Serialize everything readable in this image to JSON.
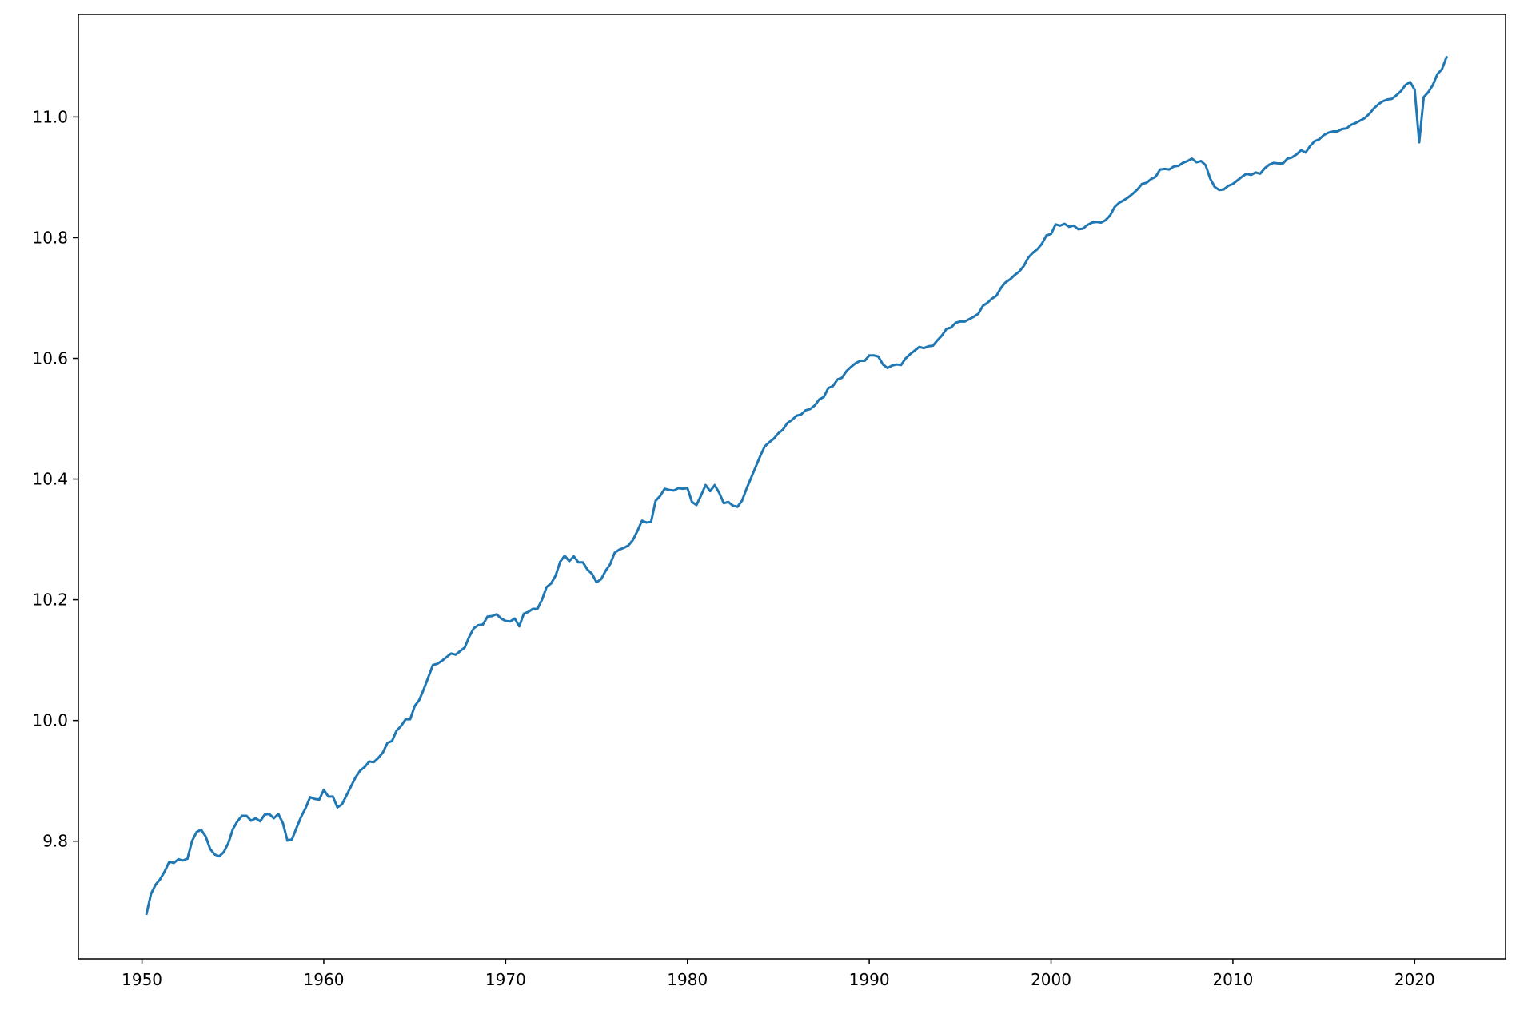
{
  "chart_data": {
    "type": "line",
    "title": "",
    "xlabel": "",
    "ylabel": "",
    "xlim": [
      1946.5,
      2025.0
    ],
    "ylim": [
      9.605,
      11.17
    ],
    "x_ticks": [
      1950,
      1960,
      1970,
      1980,
      1990,
      2000,
      2010,
      2020
    ],
    "x_tick_labels": [
      "1950",
      "1960",
      "1970",
      "1980",
      "1990",
      "2000",
      "2010",
      "2020"
    ],
    "y_ticks": [
      9.8,
      10.0,
      10.2,
      10.4,
      10.6,
      10.8,
      11.0
    ],
    "y_tick_labels": [
      "9.8",
      "10.0",
      "10.2",
      "10.4",
      "10.6",
      "10.8",
      "11.0"
    ],
    "grid": false,
    "legend": "none",
    "series_color": "#1f77b4",
    "series": [
      {
        "x": [
          1950.25,
          1950.5,
          1950.75,
          1951.0,
          1951.25,
          1951.5,
          1951.75,
          1952.0,
          1952.25,
          1952.5,
          1952.75,
          1953.0,
          1953.25,
          1953.5,
          1953.75,
          1954.0,
          1954.25,
          1954.5,
          1954.75,
          1955.0,
          1955.25,
          1955.5,
          1955.75,
          1956.0,
          1956.25,
          1956.5,
          1956.75,
          1957.0,
          1957.25,
          1957.5,
          1957.75,
          1958.0,
          1958.25,
          1958.5,
          1958.75,
          1959.0,
          1959.25,
          1959.5,
          1959.75,
          1960.0,
          1960.25,
          1960.5,
          1960.75,
          1961.0,
          1961.25,
          1961.5,
          1961.75,
          1962.0,
          1962.25,
          1962.5,
          1962.75,
          1963.0,
          1963.25,
          1963.5,
          1963.75,
          1964.0,
          1964.25,
          1964.5,
          1964.75,
          1965.0,
          1965.25,
          1965.5,
          1965.75,
          1966.0,
          1966.25,
          1966.5,
          1966.75,
          1967.0,
          1967.25,
          1967.5,
          1967.75,
          1968.0,
          1968.25,
          1968.5,
          1968.75,
          1969.0,
          1969.25,
          1969.5,
          1969.75,
          1970.0,
          1970.25,
          1970.5,
          1970.75,
          1971.0,
          1971.25,
          1971.5,
          1971.75,
          1972.0,
          1972.25,
          1972.5,
          1972.75,
          1973.0,
          1973.25,
          1973.5,
          1973.75,
          1974.0,
          1974.25,
          1974.5,
          1974.75,
          1975.0,
          1975.25,
          1975.5,
          1975.75,
          1976.0,
          1976.25,
          1976.5,
          1976.75,
          1977.0,
          1977.25,
          1977.5,
          1977.75,
          1978.0,
          1978.25,
          1978.5,
          1978.75,
          1979.0,
          1979.25,
          1979.5,
          1979.75,
          1980.0,
          1980.25,
          1980.5,
          1980.75,
          1981.0,
          1981.25,
          1981.5,
          1981.75,
          1982.0,
          1982.25,
          1982.5,
          1982.75,
          1983.0,
          1983.25,
          1983.5,
          1983.75,
          1984.0,
          1984.25,
          1984.5,
          1984.75,
          1985.0,
          1985.25,
          1985.5,
          1985.75,
          1986.0,
          1986.25,
          1986.5,
          1986.75,
          1987.0,
          1987.25,
          1987.5,
          1987.75,
          1988.0,
          1988.25,
          1988.5,
          1988.75,
          1989.0,
          1989.25,
          1989.5,
          1989.75,
          1990.0,
          1990.25,
          1990.5,
          1990.75,
          1991.0,
          1991.25,
          1991.5,
          1991.75,
          1992.0,
          1992.25,
          1992.5,
          1992.75,
          1993.0,
          1993.25,
          1993.5,
          1993.75,
          1994.0,
          1994.25,
          1994.5,
          1994.75,
          1995.0,
          1995.25,
          1995.5,
          1995.75,
          1996.0,
          1996.25,
          1996.5,
          1996.75,
          1997.0,
          1997.25,
          1997.5,
          1997.75,
          1998.0,
          1998.25,
          1998.5,
          1998.75,
          1999.0,
          1999.25,
          1999.5,
          1999.75,
          2000.0,
          2000.25,
          2000.5,
          2000.75,
          2001.0,
          2001.25,
          2001.5,
          2001.75,
          2002.0,
          2002.25,
          2002.5,
          2002.75,
          2003.0,
          2003.25,
          2003.5,
          2003.75,
          2004.0,
          2004.25,
          2004.5,
          2004.75,
          2005.0,
          2005.25,
          2005.5,
          2005.75,
          2006.0,
          2006.25,
          2006.5,
          2006.75,
          2007.0,
          2007.25,
          2007.5,
          2007.75,
          2008.0,
          2008.25,
          2008.5,
          2008.75,
          2009.0,
          2009.25,
          2009.5,
          2009.75,
          2010.0,
          2010.25,
          2010.5,
          2010.75,
          2011.0,
          2011.25,
          2011.5,
          2011.75,
          2012.0,
          2012.25,
          2012.5,
          2012.75,
          2013.0,
          2013.25,
          2013.5,
          2013.75,
          2014.0,
          2014.25,
          2014.5,
          2014.75,
          2015.0,
          2015.25,
          2015.5,
          2015.75,
          2016.0,
          2016.25,
          2016.5,
          2016.75,
          2017.0,
          2017.25,
          2017.5,
          2017.75,
          2018.0,
          2018.25,
          2018.5,
          2018.75,
          2019.0,
          2019.25,
          2019.5,
          2019.75,
          2020.0,
          2020.25,
          2020.5,
          2020.75,
          2021.0,
          2021.25,
          2021.5,
          2021.75
        ],
        "y": [
          9.68,
          9.713,
          9.728,
          9.737,
          9.75,
          9.766,
          9.764,
          9.77,
          9.768,
          9.771,
          9.8,
          9.815,
          9.819,
          9.808,
          9.787,
          9.778,
          9.775,
          9.782,
          9.797,
          9.82,
          9.833,
          9.842,
          9.842,
          9.834,
          9.838,
          9.833,
          9.844,
          9.845,
          9.838,
          9.845,
          9.83,
          9.801,
          9.803,
          9.822,
          9.84,
          9.855,
          9.873,
          9.87,
          9.869,
          9.885,
          9.874,
          9.874,
          9.856,
          9.861,
          9.876,
          9.891,
          9.906,
          9.917,
          9.923,
          9.932,
          9.931,
          9.938,
          9.947,
          9.963,
          9.966,
          9.983,
          9.991,
          10.002,
          10.002,
          10.024,
          10.034,
          10.052,
          10.072,
          10.092,
          10.094,
          10.099,
          10.105,
          10.111,
          10.109,
          10.115,
          10.121,
          10.139,
          10.153,
          10.158,
          10.159,
          10.172,
          10.173,
          10.176,
          10.169,
          10.165,
          10.164,
          10.169,
          10.156,
          10.177,
          10.18,
          10.185,
          10.185,
          10.2,
          10.221,
          10.227,
          10.24,
          10.263,
          10.273,
          10.264,
          10.272,
          10.262,
          10.262,
          10.25,
          10.243,
          10.229,
          10.234,
          10.248,
          10.259,
          10.278,
          10.283,
          10.286,
          10.29,
          10.299,
          10.314,
          10.331,
          10.328,
          10.329,
          10.364,
          10.372,
          10.384,
          10.382,
          10.381,
          10.385,
          10.384,
          10.385,
          10.362,
          10.357,
          10.373,
          10.39,
          10.38,
          10.39,
          10.377,
          10.36,
          10.362,
          10.356,
          10.354,
          10.364,
          10.384,
          10.402,
          10.42,
          10.438,
          10.454,
          10.461,
          10.467,
          10.476,
          10.482,
          10.493,
          10.498,
          10.505,
          10.507,
          10.514,
          10.516,
          10.522,
          10.532,
          10.536,
          10.551,
          10.554,
          10.565,
          10.568,
          10.579,
          10.586,
          10.592,
          10.596,
          10.596,
          10.605,
          10.605,
          10.603,
          10.59,
          10.584,
          10.588,
          10.59,
          10.589,
          10.6,
          10.607,
          10.613,
          10.619,
          10.617,
          10.62,
          10.621,
          10.63,
          10.638,
          10.649,
          10.651,
          10.659,
          10.661,
          10.661,
          10.665,
          10.669,
          10.674,
          10.687,
          10.692,
          10.699,
          10.704,
          10.717,
          10.726,
          10.731,
          10.738,
          10.744,
          10.753,
          10.767,
          10.775,
          10.781,
          10.79,
          10.804,
          10.806,
          10.822,
          10.82,
          10.823,
          10.818,
          10.82,
          10.814,
          10.815,
          10.821,
          10.825,
          10.826,
          10.825,
          10.829,
          10.837,
          10.851,
          10.858,
          10.862,
          10.867,
          10.873,
          10.88,
          10.889,
          10.891,
          10.897,
          10.901,
          10.913,
          10.914,
          10.913,
          10.918,
          10.919,
          10.924,
          10.927,
          10.931,
          10.925,
          10.927,
          10.92,
          10.898,
          10.884,
          10.879,
          10.88,
          10.886,
          10.889,
          10.895,
          10.901,
          10.906,
          10.904,
          10.908,
          10.906,
          10.915,
          10.921,
          10.924,
          10.923,
          10.923,
          10.931,
          10.933,
          10.938,
          10.945,
          10.941,
          10.952,
          10.96,
          10.963,
          10.97,
          10.974,
          10.976,
          10.976,
          10.98,
          10.981,
          10.987,
          10.99,
          10.994,
          10.998,
          11.005,
          11.014,
          11.021,
          11.026,
          11.029,
          11.03,
          11.036,
          11.043,
          11.053,
          11.058,
          11.045,
          10.958,
          11.033,
          11.041,
          11.053,
          11.071,
          11.079,
          11.099
        ]
      }
    ]
  }
}
